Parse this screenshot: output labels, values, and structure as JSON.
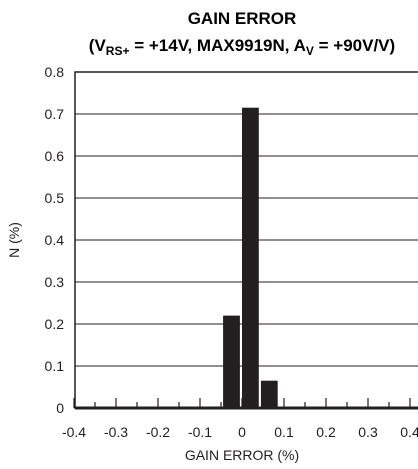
{
  "chart_data": {
    "type": "bar",
    "title": "GAIN ERROR",
    "subtitle": {
      "open": "(V",
      "sub1": "RS+",
      "mid": " = +14V, MAX9919N, A",
      "sub2": "V",
      "close": " = +90V/V)"
    },
    "xlabel": "GAIN ERROR (%)",
    "ylabel": "N (%)",
    "xlim": [
      -0.4,
      0.4
    ],
    "ylim": [
      0,
      0.8
    ],
    "xticks": [
      "-0.4",
      "-0.3",
      "-0.2",
      "-0.1",
      "0",
      "0.1",
      "0.2",
      "0.3",
      "0.4"
    ],
    "yticks": [
      "0",
      "0.1",
      "0.2",
      "0.3",
      "0.4",
      "0.5",
      "0.6",
      "0.7",
      "0.8"
    ],
    "grid": "horizontal",
    "bars": [
      {
        "x_from": -0.045,
        "x_to": -0.005,
        "value": 0.22
      },
      {
        "x_from": 0.0,
        "x_to": 0.04,
        "value": 0.715
      },
      {
        "x_from": 0.045,
        "x_to": 0.085,
        "value": 0.065
      }
    ],
    "bar_color": "#231f20"
  }
}
